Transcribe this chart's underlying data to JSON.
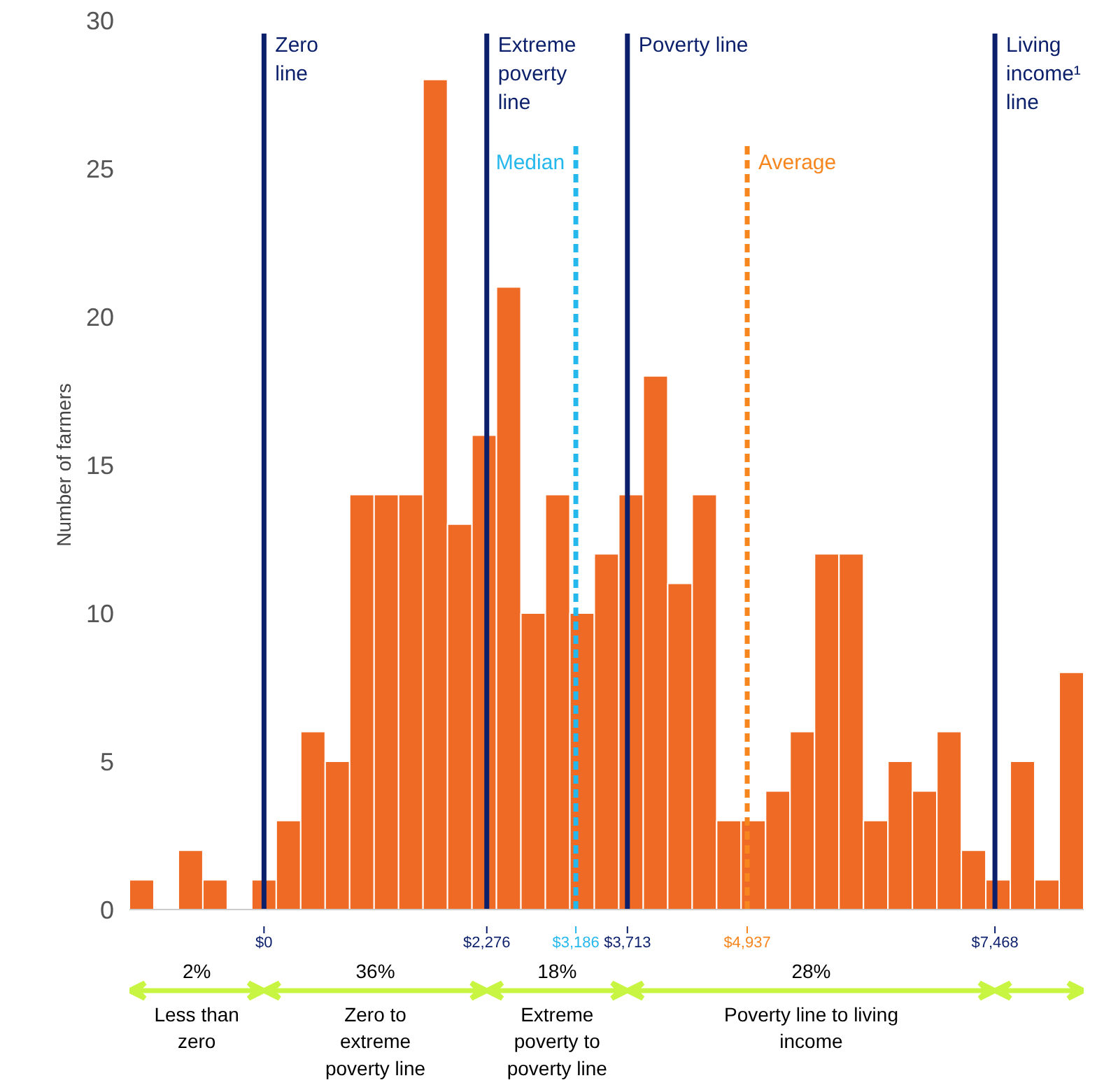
{
  "chart_data": {
    "type": "histogram",
    "ylabel": "Number of farmers",
    "bins": [
      -1375,
      -1125,
      -875,
      -625,
      -375,
      -125,
      125,
      375,
      625,
      875,
      1125,
      1375,
      1625,
      1875,
      2125,
      2375,
      2625,
      2875,
      3125,
      3375,
      3625,
      3875,
      4125,
      4375,
      4625,
      4875,
      5125,
      5375,
      5625,
      5875,
      6125,
      6375,
      6625,
      6875,
      7125,
      7375,
      7625,
      7875,
      8125,
      8375
    ],
    "values": [
      1,
      0,
      2,
      1,
      0,
      1,
      3,
      6,
      5,
      14,
      14,
      14,
      28,
      13,
      16,
      21,
      10,
      14,
      10,
      12,
      14,
      18,
      11,
      14,
      3,
      3,
      4,
      6,
      12,
      12,
      3,
      5,
      4,
      6,
      2,
      1,
      5,
      1,
      8
    ],
    "color": "#ee6a25",
    "xlim": [
      -1375,
      8375
    ],
    "ylim": [
      0,
      30
    ],
    "yticks": [
      0,
      5,
      10,
      15,
      20,
      25,
      30
    ],
    "xticks": [
      {
        "value": 0,
        "label": "$0"
      },
      {
        "value": 2276,
        "label": "$2,276"
      },
      {
        "value": 3186,
        "label": "$3,186"
      },
      {
        "value": 3713,
        "label": "$3,713"
      },
      {
        "value": 4937,
        "label": "$4,937"
      },
      {
        "value": 7468,
        "label": "$7,468"
      }
    ],
    "grid": false,
    "ref_lines": [
      {
        "axis": "x",
        "value": 0,
        "label": "Zero\nline",
        "color": "#0b1f6b",
        "line_style": "solid"
      },
      {
        "axis": "x",
        "value": 2276,
        "label": "Extreme\npoverty\nline",
        "color": "#0b1f6b",
        "line_style": "solid"
      },
      {
        "axis": "x",
        "value": 3186,
        "label": "Median",
        "color": "#25b8ec",
        "line_style": "dashed"
      },
      {
        "axis": "x",
        "value": 3713,
        "label": "Poverty line",
        "color": "#0b1f6b",
        "line_style": "solid"
      },
      {
        "axis": "x",
        "value": 4937,
        "label": "Average",
        "color": "#f7861f",
        "line_style": "dashed"
      },
      {
        "axis": "x",
        "value": 7468,
        "label": "Living\nincome¹\nline",
        "color": "#0b1f6b",
        "line_style": "solid"
      }
    ],
    "annotations": [
      "2%\nLess than\nzero",
      "36%\nZero to\nextreme\npoverty line",
      "18%\nExtreme\npoverty to\npoverty line",
      "28%\nPoverty line to living\nincome"
    ]
  }
}
